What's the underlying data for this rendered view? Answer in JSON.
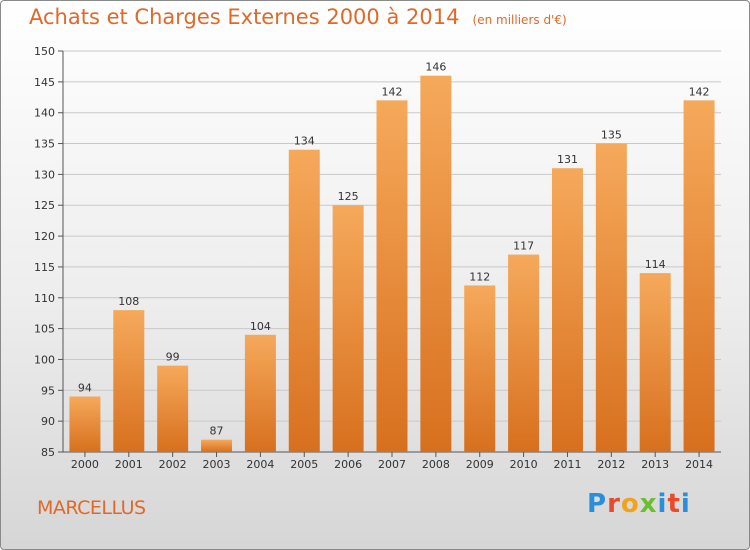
{
  "header": {
    "title": "Achats et Charges Externes 2000 à 2014",
    "subtitle": "(en milliers d'€)"
  },
  "footer": {
    "place": "MARCELLUS",
    "logo_text": [
      "P",
      "r",
      "o",
      "x",
      "i",
      "t",
      "i"
    ]
  },
  "colors": {
    "bar_top": "#f6a95b",
    "bar_bottom": "#d7701e",
    "title": "#e0692a",
    "grid": "#c8c8c8"
  },
  "chart_data": {
    "type": "bar",
    "title": "Achats et Charges Externes 2000 à 2014",
    "subtitle": "(en milliers d'€)",
    "categories": [
      "2000",
      "2001",
      "2002",
      "2003",
      "2004",
      "2005",
      "2006",
      "2007",
      "2008",
      "2009",
      "2010",
      "2011",
      "2012",
      "2013",
      "2014"
    ],
    "values": [
      94,
      108,
      99,
      87,
      104,
      134,
      125,
      142,
      146,
      112,
      117,
      131,
      135,
      114,
      142
    ],
    "ylim": [
      85,
      150
    ],
    "yticks": [
      85,
      90,
      95,
      100,
      105,
      110,
      115,
      120,
      125,
      130,
      135,
      140,
      145,
      150
    ],
    "grid": true,
    "data_labels": true
  }
}
